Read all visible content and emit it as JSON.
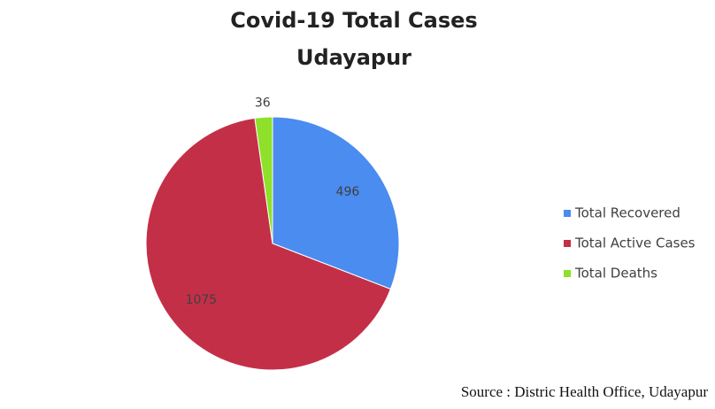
{
  "chart_data": {
    "type": "pie",
    "title": "Covid-19 Total Cases",
    "subtitle": "Udayapur",
    "categories": [
      "Total Recovered",
      "Total Active Cases",
      "Total Deaths"
    ],
    "values": [
      496,
      1075,
      36
    ],
    "colors": [
      "#4a8cf0",
      "#c42f48",
      "#8ee02a"
    ],
    "source": "Source : Distric Health Office, Udayapur"
  }
}
